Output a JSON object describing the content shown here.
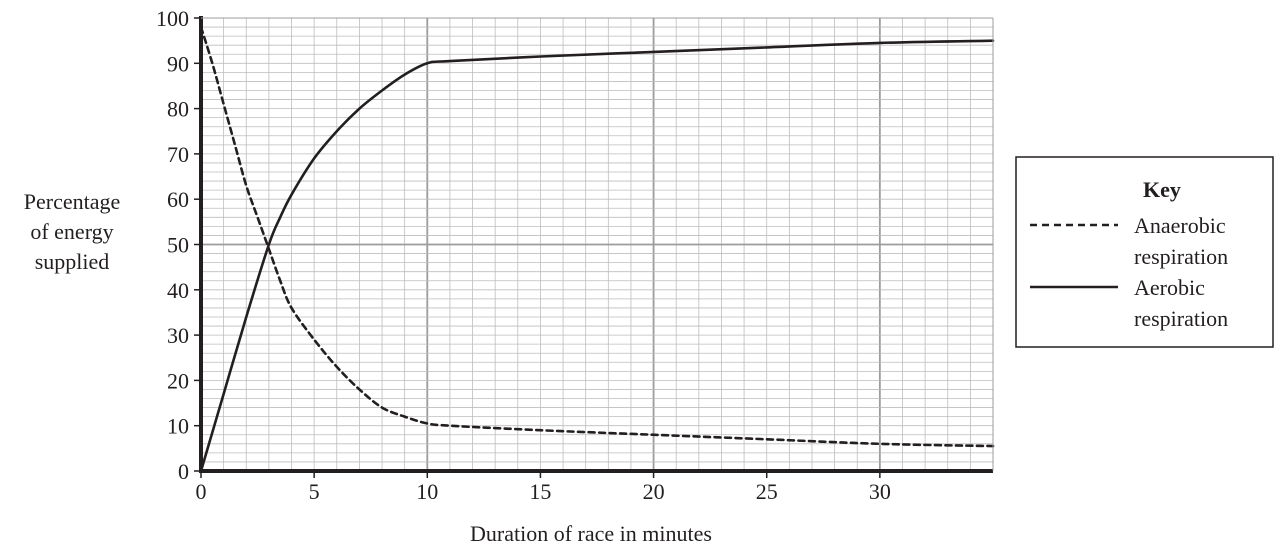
{
  "chart_data": {
    "type": "line",
    "title": "",
    "xlabel": "Duration of race in minutes",
    "ylabel_lines": [
      "Percentage",
      "of energy",
      "supplied"
    ],
    "xlim": [
      0,
      35
    ],
    "ylim": [
      0,
      100
    ],
    "x_ticks": [
      0,
      5,
      10,
      15,
      20,
      25,
      30
    ],
    "y_ticks": [
      0,
      10,
      20,
      30,
      40,
      50,
      60,
      70,
      80,
      90,
      100
    ],
    "minor_step_x": 1,
    "minor_step_y": 2,
    "major_grid_x": [
      10,
      20,
      30
    ],
    "major_grid_y": [
      50
    ],
    "grid": true,
    "legend": {
      "title": "Key",
      "placement": "right",
      "entries": [
        {
          "series": 0,
          "lines": [
            "Anaerobic",
            "respiration"
          ]
        },
        {
          "series": 1,
          "lines": [
            "Aerobic",
            "respiration"
          ]
        }
      ]
    },
    "series": [
      {
        "name": "Anaerobic respiration",
        "style": "dashed",
        "color": "#231f20",
        "points": [
          [
            0,
            98
          ],
          [
            0.5,
            90
          ],
          [
            1,
            81
          ],
          [
            1.5,
            72
          ],
          [
            2,
            63
          ],
          [
            2.5,
            56
          ],
          [
            3,
            49
          ],
          [
            3.5,
            42
          ],
          [
            4,
            36
          ],
          [
            5,
            29
          ],
          [
            6,
            23
          ],
          [
            7,
            18
          ],
          [
            8,
            14
          ],
          [
            9,
            12
          ],
          [
            10,
            10.5
          ],
          [
            11,
            10
          ],
          [
            15,
            9
          ],
          [
            20,
            8
          ],
          [
            25,
            7
          ],
          [
            30,
            6
          ],
          [
            35,
            5.5
          ]
        ]
      },
      {
        "name": "Aerobic respiration",
        "style": "solid",
        "color": "#231f20",
        "points": [
          [
            0,
            0
          ],
          [
            1,
            17
          ],
          [
            2,
            34
          ],
          [
            3,
            50
          ],
          [
            3.5,
            56
          ],
          [
            4,
            61
          ],
          [
            5,
            69
          ],
          [
            6,
            75
          ],
          [
            7,
            80
          ],
          [
            8,
            84
          ],
          [
            9,
            87.5
          ],
          [
            10,
            90
          ],
          [
            11,
            90.5
          ],
          [
            15,
            91.5
          ],
          [
            20,
            92.5
          ],
          [
            25,
            93.5
          ],
          [
            30,
            94.5
          ],
          [
            35,
            95
          ]
        ]
      }
    ]
  }
}
